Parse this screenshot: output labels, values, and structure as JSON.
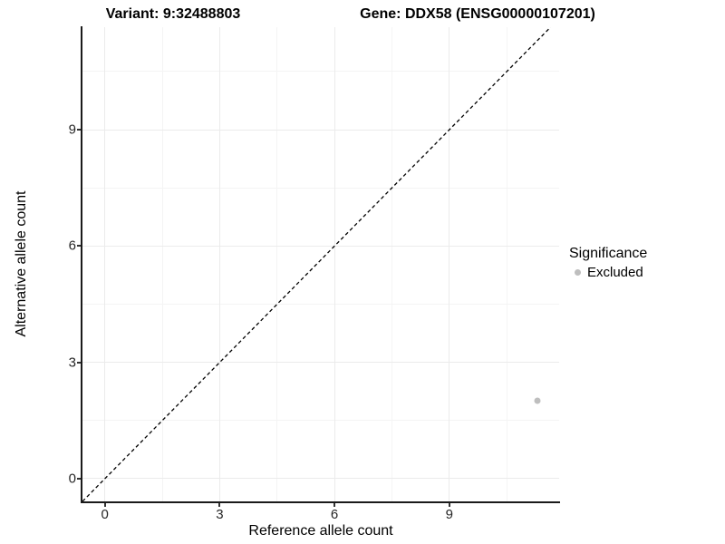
{
  "chart_data": {
    "type": "scatter",
    "title_variant": "Variant: 9:32488803",
    "title_gene": "Gene: DDX58 (ENSG00000107201)",
    "xlabel": "Reference allele count",
    "ylabel": "Alternative allele count",
    "x_ticks": [
      0,
      3,
      6,
      9
    ],
    "y_ticks": [
      0,
      3,
      6,
      9
    ],
    "x_minor_ticks": [
      1.5,
      4.5,
      7.5,
      10.5
    ],
    "y_minor_ticks": [
      1.5,
      4.5,
      7.5,
      10.5
    ],
    "xlim": [
      -0.585,
      11.87
    ],
    "ylim": [
      -0.585,
      11.645
    ],
    "grid": true,
    "points": [
      {
        "x": 11.3,
        "y": 2.0,
        "series": "Excluded",
        "color": "#bebebe",
        "size": 7
      }
    ],
    "reference_line": {
      "type": "identity",
      "slope": 1,
      "intercept": 0,
      "style": "dashed",
      "color": "#000000"
    },
    "legend": {
      "position": "right",
      "title": "Significance",
      "entries": [
        {
          "label": "Excluded",
          "color": "#bebebe"
        }
      ]
    }
  },
  "colors": {
    "background": "#ffffff",
    "axis_line": "#1a1a1a",
    "tick_label": "#262626",
    "grid_major": "#ebebeb",
    "grid_minor": "#f4f4f4",
    "point": "#bebebe"
  }
}
